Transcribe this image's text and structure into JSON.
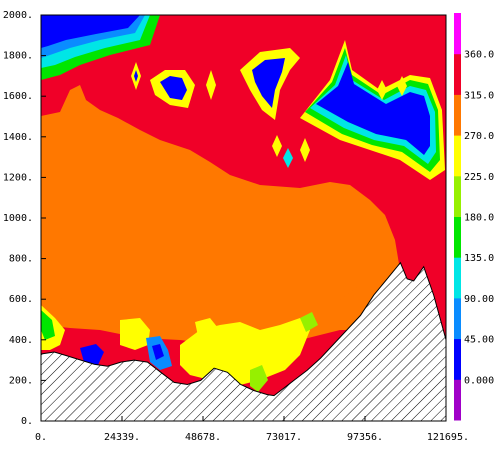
{
  "chart_data": {
    "type": "heatmap",
    "title": "",
    "xlabel": "",
    "ylabel": "",
    "xlim": [
      0,
      121695
    ],
    "ylim": [
      0,
      2000
    ],
    "x_ticks": [
      0,
      24339,
      48678,
      73017,
      97356,
      121695
    ],
    "x_tick_labels": [
      "0.",
      "24339.",
      "48678.",
      "73017.",
      "97356.",
      "121695."
    ],
    "y_ticks": [
      0,
      200,
      400,
      600,
      800,
      1000,
      1200,
      1400,
      1600,
      1800,
      2000
    ],
    "y_tick_labels": [
      "0.",
      "200.",
      "400.",
      "600.",
      "800.",
      "1000.",
      "1200.",
      "1400.",
      "1600.",
      "1800.",
      "2000."
    ],
    "colorbar": {
      "levels": [
        0,
        45,
        90,
        135,
        180,
        225,
        270,
        315,
        360
      ],
      "level_labels": [
        "0.000",
        "45.00",
        "90.00",
        "135.0",
        "180.0",
        "225.0",
        "270.0",
        "315.0",
        "360.0"
      ],
      "colors": [
        "#a000c8",
        "#0000ff",
        "#0a8cff",
        "#00e6e6",
        "#00e600",
        "#96f000",
        "#ffff00",
        "#ff7800",
        "#f00028",
        "#ff00ff"
      ]
    },
    "terrain": {
      "x": [
        0,
        4000,
        8000,
        12000,
        16000,
        20000,
        24000,
        28000,
        32000,
        36000,
        40000,
        44000,
        48000,
        52000,
        56000,
        60000,
        64000,
        68000,
        70000,
        72000,
        76000,
        80000,
        84000,
        88000,
        92000,
        96000,
        100000,
        104000,
        108000,
        110000,
        112000,
        115000,
        118000,
        121695
      ],
      "y": [
        330,
        340,
        320,
        300,
        280,
        270,
        290,
        300,
        290,
        240,
        190,
        180,
        200,
        260,
        240,
        180,
        150,
        130,
        125,
        150,
        200,
        250,
        310,
        380,
        450,
        520,
        620,
        700,
        780,
        700,
        690,
        760,
        620,
        400
      ]
    },
    "regions": [
      {
        "level": 315,
        "label": "upper red region",
        "approx_top_m": 2000,
        "approx_bottom_m": 1500
      },
      {
        "level": 270,
        "label": "central orange region",
        "approx_top_m": 1450,
        "approx_bottom_m": 400
      },
      {
        "level": 0,
        "label": "upper blue patch right",
        "approx_x_range": [
          90000,
          114000
        ],
        "approx_y_range": [
          1350,
          1750
        ]
      },
      {
        "level": 0,
        "label": "upper blue patch left",
        "approx_x_range": [
          0,
          32000
        ],
        "approx_y_range": [
          1900,
          2000
        ]
      },
      {
        "level": 225,
        "label": "lower yellow band",
        "approx_x_range": [
          40000,
          82000
        ],
        "approx_y_range": [
          130,
          400
        ]
      }
    ]
  }
}
